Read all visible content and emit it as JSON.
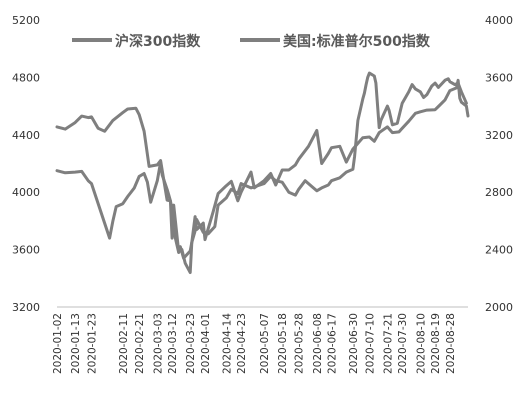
{
  "chart_data": {
    "type": "line",
    "legend": {
      "placement": "top",
      "entries": [
        "沪深300指数",
        "美国:标准普尔500指数"
      ]
    },
    "x_ticks": [
      "2020-01-02",
      "2020-01-13",
      "2020-01-23",
      "2020-02-11",
      "2020-02-21",
      "2020-03-03",
      "2020-03-12",
      "2020-03-23",
      "2020-04-01",
      "2020-04-14",
      "2020-04-23",
      "2020-05-07",
      "2020-05-18",
      "2020-05-28",
      "2020-06-08",
      "2020-06-17",
      "2020-06-30",
      "2020-07-10",
      "2020-07-21",
      "2020-07-30",
      "2020-08-10",
      "2020-08-19",
      "2020-08-28"
    ],
    "y_left": {
      "min": 3200,
      "max": 5200,
      "ticks": [
        "5200",
        "4800",
        "4400",
        "4000",
        "3600",
        "3200"
      ]
    },
    "y_right": {
      "min": 2000,
      "max": 4000,
      "ticks": [
        "4000",
        "3600",
        "3200",
        "2800",
        "2400",
        "2000"
      ]
    },
    "series": [
      {
        "name": "沪深300指数",
        "axis": "left",
        "color": "#7f7f7f",
        "points": [
          [
            "2020-01-02",
            4150
          ],
          [
            "2020-01-07",
            4135
          ],
          [
            "2020-01-13",
            4140
          ],
          [
            "2020-01-17",
            4145
          ],
          [
            "2020-01-21",
            4080
          ],
          [
            "2020-01-23",
            4060
          ],
          [
            "2020-02-03",
            3680
          ],
          [
            "2020-02-05",
            3800
          ],
          [
            "2020-02-07",
            3900
          ],
          [
            "2020-02-11",
            3920
          ],
          [
            "2020-02-14",
            3970
          ],
          [
            "2020-02-18",
            4030
          ],
          [
            "2020-02-21",
            4110
          ],
          [
            "2020-02-24",
            4130
          ],
          [
            "2020-02-26",
            4070
          ],
          [
            "2020-02-28",
            3930
          ],
          [
            "2020-03-03",
            4080
          ],
          [
            "2020-03-05",
            4210
          ],
          [
            "2020-03-06",
            4120
          ],
          [
            "2020-03-09",
            4020
          ],
          [
            "2020-03-10",
            3980
          ],
          [
            "2020-03-11",
            3940
          ],
          [
            "2020-03-12",
            3880
          ],
          [
            "2020-03-13",
            3730
          ],
          [
            "2020-03-16",
            3580
          ],
          [
            "2020-03-17",
            3620
          ],
          [
            "2020-03-19",
            3540
          ],
          [
            "2020-03-23",
            3590
          ],
          [
            "2020-03-24",
            3650
          ],
          [
            "2020-03-26",
            3730
          ],
          [
            "2020-03-27",
            3810
          ],
          [
            "2020-03-31",
            3720
          ],
          [
            "2020-04-01",
            3720
          ],
          [
            "2020-04-03",
            3710
          ],
          [
            "2020-04-07",
            3760
          ],
          [
            "2020-04-09",
            3910
          ],
          [
            "2020-04-14",
            3960
          ],
          [
            "2020-04-17",
            4020
          ],
          [
            "2020-04-21",
            3990
          ],
          [
            "2020-04-23",
            4060
          ],
          [
            "2020-04-29",
            4030
          ],
          [
            "2020-05-07",
            4060
          ],
          [
            "2020-05-11",
            4110
          ],
          [
            "2020-05-14",
            4080
          ],
          [
            "2020-05-18",
            4070
          ],
          [
            "2020-05-22",
            4000
          ],
          [
            "2020-05-26",
            3980
          ],
          [
            "2020-05-28",
            4020
          ],
          [
            "2020-06-01",
            4080
          ],
          [
            "2020-06-05",
            4040
          ],
          [
            "2020-06-08",
            4010
          ],
          [
            "2020-06-11",
            4030
          ],
          [
            "2020-06-15",
            4050
          ],
          [
            "2020-06-17",
            4080
          ],
          [
            "2020-06-22",
            4100
          ],
          [
            "2020-06-26",
            4140
          ],
          [
            "2020-06-30",
            4160
          ],
          [
            "2020-07-01",
            4250
          ],
          [
            "2020-07-03",
            4500
          ],
          [
            "2020-07-06",
            4650
          ],
          [
            "2020-07-07",
            4690
          ],
          [
            "2020-07-08",
            4750
          ],
          [
            "2020-07-09",
            4800
          ],
          [
            "2020-07-10",
            4830
          ],
          [
            "2020-07-13",
            4810
          ],
          [
            "2020-07-14",
            4760
          ],
          [
            "2020-07-16",
            4450
          ],
          [
            "2020-07-17",
            4500
          ],
          [
            "2020-07-21",
            4600
          ],
          [
            "2020-07-22",
            4570
          ],
          [
            "2020-07-24",
            4470
          ],
          [
            "2020-07-27",
            4480
          ],
          [
            "2020-07-30",
            4620
          ],
          [
            "2020-08-03",
            4700
          ],
          [
            "2020-08-05",
            4750
          ],
          [
            "2020-08-07",
            4720
          ],
          [
            "2020-08-10",
            4700
          ],
          [
            "2020-08-12",
            4660
          ],
          [
            "2020-08-14",
            4680
          ],
          [
            "2020-08-17",
            4740
          ],
          [
            "2020-08-19",
            4760
          ],
          [
            "2020-08-21",
            4730
          ],
          [
            "2020-08-25",
            4780
          ],
          [
            "2020-08-27",
            4790
          ],
          [
            "2020-08-28",
            4770
          ],
          [
            "2020-08-31",
            4750
          ],
          [
            "2020-09-02",
            4760
          ],
          [
            "2020-09-04",
            4700
          ],
          [
            "2020-09-07",
            4620
          ]
        ]
      },
      {
        "name": "美国:标准普尔500指数",
        "axis": "right",
        "color": "#7f7f7f",
        "points": [
          [
            "2020-01-02",
            3255
          ],
          [
            "2020-01-07",
            3240
          ],
          [
            "2020-01-13",
            3285
          ],
          [
            "2020-01-17",
            3330
          ],
          [
            "2020-01-21",
            3320
          ],
          [
            "2020-01-23",
            3325
          ],
          [
            "2020-01-27",
            3245
          ],
          [
            "2020-01-31",
            3225
          ],
          [
            "2020-02-05",
            3300
          ],
          [
            "2020-02-11",
            3355
          ],
          [
            "2020-02-14",
            3380
          ],
          [
            "2020-02-19",
            3385
          ],
          [
            "2020-02-21",
            3340
          ],
          [
            "2020-02-24",
            3225
          ],
          [
            "2020-02-27",
            2980
          ],
          [
            "2020-03-03",
            2990
          ],
          [
            "2020-03-05",
            3020
          ],
          [
            "2020-03-09",
            2745
          ],
          [
            "2020-03-11",
            2740
          ],
          [
            "2020-03-12",
            2480
          ],
          [
            "2020-03-13",
            2710
          ],
          [
            "2020-03-16",
            2385
          ],
          [
            "2020-03-18",
            2400
          ],
          [
            "2020-03-20",
            2305
          ],
          [
            "2020-03-23",
            2240
          ],
          [
            "2020-03-24",
            2450
          ],
          [
            "2020-03-26",
            2630
          ],
          [
            "2020-03-27",
            2540
          ],
          [
            "2020-03-31",
            2585
          ],
          [
            "2020-04-01",
            2470
          ],
          [
            "2020-04-06",
            2665
          ],
          [
            "2020-04-09",
            2790
          ],
          [
            "2020-04-14",
            2845
          ],
          [
            "2020-04-17",
            2875
          ],
          [
            "2020-04-21",
            2740
          ],
          [
            "2020-04-23",
            2800
          ],
          [
            "2020-04-29",
            2940
          ],
          [
            "2020-05-01",
            2830
          ],
          [
            "2020-05-07",
            2880
          ],
          [
            "2020-05-11",
            2930
          ],
          [
            "2020-05-14",
            2850
          ],
          [
            "2020-05-18",
            2955
          ],
          [
            "2020-05-22",
            2955
          ],
          [
            "2020-05-26",
            2990
          ],
          [
            "2020-05-28",
            3030
          ],
          [
            "2020-06-03",
            3120
          ],
          [
            "2020-06-08",
            3230
          ],
          [
            "2020-06-11",
            3000
          ],
          [
            "2020-06-15",
            3070
          ],
          [
            "2020-06-17",
            3110
          ],
          [
            "2020-06-22",
            3120
          ],
          [
            "2020-06-26",
            3010
          ],
          [
            "2020-06-30",
            3100
          ],
          [
            "2020-07-06",
            3180
          ],
          [
            "2020-07-10",
            3185
          ],
          [
            "2020-07-13",
            3155
          ],
          [
            "2020-07-16",
            3215
          ],
          [
            "2020-07-21",
            3255
          ],
          [
            "2020-07-24",
            3215
          ],
          [
            "2020-07-28",
            3220
          ],
          [
            "2020-07-30",
            3245
          ],
          [
            "2020-08-03",
            3295
          ],
          [
            "2020-08-07",
            3350
          ],
          [
            "2020-08-10",
            3360
          ],
          [
            "2020-08-14",
            3372
          ],
          [
            "2020-08-19",
            3375
          ],
          [
            "2020-08-21",
            3397
          ],
          [
            "2020-08-25",
            3443
          ],
          [
            "2020-08-28",
            3508
          ],
          [
            "2020-09-01",
            3527
          ],
          [
            "2020-09-02",
            3580
          ],
          [
            "2020-09-03",
            3455
          ],
          [
            "2020-09-04",
            3427
          ],
          [
            "2020-09-07",
            3400
          ],
          [
            "2020-09-08",
            3331
          ]
        ]
      }
    ]
  }
}
